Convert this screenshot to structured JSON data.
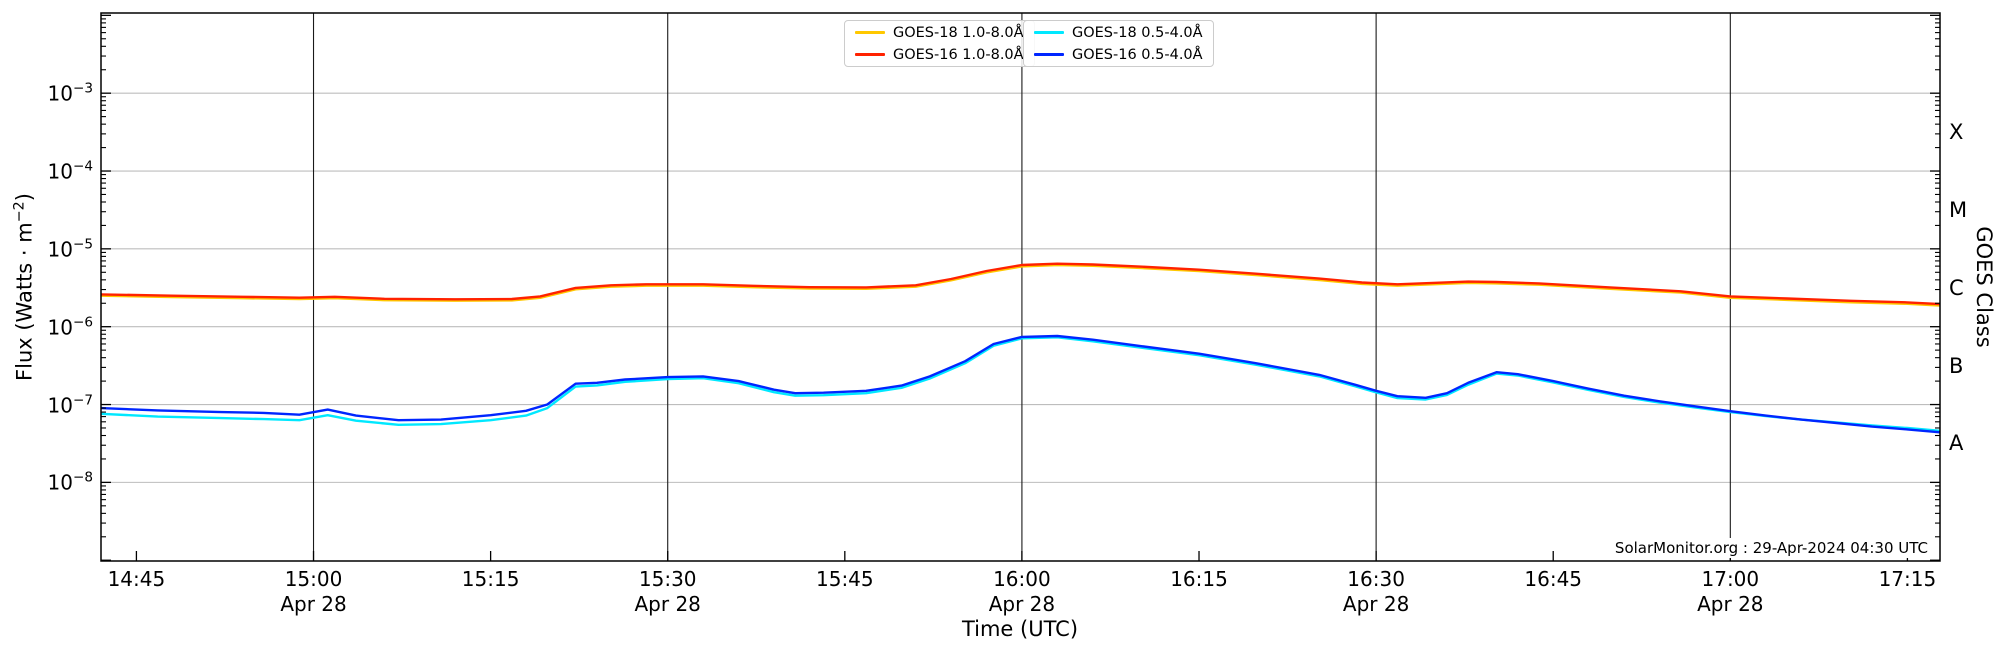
{
  "figure": {
    "bg": "#ffffff"
  },
  "axes": {
    "xlabel": "Time (UTC)",
    "ylabel_prefix": "Flux (Watts · m",
    "ylabel_exp": "−2",
    "ylabel_suffix": ")",
    "right_label": "GOES Class"
  },
  "watermark": "SolarMonitor.org : 29-Apr-2024 04:30 UTC",
  "colors": {
    "goes18_long": "#ffc800",
    "goes16_long": "#ff2200",
    "goes18_short": "#00e8ff",
    "goes16_short": "#0026ff",
    "h_grid": "#bdbdbd",
    "v_grid": "#1a1a1a",
    "frame": "#000000"
  },
  "legend": {
    "boxes": [
      {
        "entries": [
          {
            "label": "GOES-18 1.0-8.0Å",
            "color": "#ffc800"
          },
          {
            "label": "GOES-16 1.0-8.0Å",
            "color": "#ff2200"
          }
        ]
      },
      {
        "entries": [
          {
            "label": "GOES-18 0.5-4.0Å",
            "color": "#00e8ff"
          },
          {
            "label": "GOES-16 0.5-4.0Å",
            "color": "#0026ff"
          }
        ]
      }
    ]
  },
  "chart_data": {
    "type": "line",
    "xlabel": "Time (UTC)",
    "ylabel": "Flux (Watts · m−2)",
    "right_axis_label": "GOES Class",
    "x_axis": {
      "units": "decimal hours UTC",
      "date": "Apr 28",
      "start": 14.7,
      "end": 17.296,
      "ticks": [
        {
          "t": 14.75,
          "label": "14:45"
        },
        {
          "t": 15.0,
          "label": "15:00",
          "date": "Apr 28"
        },
        {
          "t": 15.25,
          "label": "15:15"
        },
        {
          "t": 15.5,
          "label": "15:30",
          "date": "Apr 28"
        },
        {
          "t": 15.75,
          "label": "15:45"
        },
        {
          "t": 16.0,
          "label": "16:00",
          "date": "Apr 28"
        },
        {
          "t": 16.25,
          "label": "16:15"
        },
        {
          "t": 16.5,
          "label": "16:30",
          "date": "Apr 28"
        },
        {
          "t": 16.75,
          "label": "16:45"
        },
        {
          "t": 17.0,
          "label": "17:00",
          "date": "Apr 28"
        },
        {
          "t": 17.25,
          "label": "17:15"
        }
      ]
    },
    "y_axis": {
      "scale": "log",
      "ylim_log10": [
        -9.01,
        -1.97
      ],
      "decade_ticks": [
        {
          "log": -3,
          "base": "10",
          "exp": "−3"
        },
        {
          "log": -4,
          "base": "10",
          "exp": "−4"
        },
        {
          "log": -5,
          "base": "10",
          "exp": "−5"
        },
        {
          "log": -6,
          "base": "10",
          "exp": "−6"
        },
        {
          "log": -7,
          "base": "10",
          "exp": "−7"
        },
        {
          "log": -8,
          "base": "10",
          "exp": "−8"
        }
      ]
    },
    "right_axis": {
      "classes": [
        {
          "label": "X",
          "log_center": -3.5
        },
        {
          "label": "M",
          "log_center": -4.5
        },
        {
          "label": "C",
          "log_center": -5.5
        },
        {
          "label": "B",
          "log_center": -6.5
        },
        {
          "label": "A",
          "log_center": -7.5
        }
      ]
    },
    "gridlines": {
      "vertical_hours": [
        15.0,
        15.5,
        16.0,
        16.5,
        17.0
      ],
      "horizontal_log10": [
        -3,
        -4,
        -5,
        -6,
        -7,
        -8
      ]
    },
    "series": [
      {
        "name": "GOES-18 1.0-8.0Å",
        "color": "#ffc800",
        "points": [
          [
            14.7,
            2.5e-06
          ],
          [
            14.8,
            2.4e-06
          ],
          [
            14.9,
            2.32e-06
          ],
          [
            14.98,
            2.27e-06
          ],
          [
            15.03,
            2.32e-06
          ],
          [
            15.1,
            2.19e-06
          ],
          [
            15.2,
            2.16e-06
          ],
          [
            15.28,
            2.18e-06
          ],
          [
            15.32,
            2.35e-06
          ],
          [
            15.37,
            3.02e-06
          ],
          [
            15.42,
            3.26e-06
          ],
          [
            15.47,
            3.36e-06
          ],
          [
            15.55,
            3.36e-06
          ],
          [
            15.62,
            3.22e-06
          ],
          [
            15.7,
            3.09e-06
          ],
          [
            15.78,
            3.07e-06
          ],
          [
            15.85,
            3.26e-06
          ],
          [
            15.9,
            3.94e-06
          ],
          [
            15.95,
            4.99e-06
          ],
          [
            16.0,
            5.95e-06
          ],
          [
            16.05,
            6.19e-06
          ],
          [
            16.1,
            6.05e-06
          ],
          [
            16.17,
            5.66e-06
          ],
          [
            16.25,
            5.18e-06
          ],
          [
            16.33,
            4.61e-06
          ],
          [
            16.42,
            3.98e-06
          ],
          [
            16.48,
            3.55e-06
          ],
          [
            16.53,
            3.36e-06
          ],
          [
            16.58,
            3.5e-06
          ],
          [
            16.63,
            3.65e-06
          ],
          [
            16.67,
            3.6e-06
          ],
          [
            16.73,
            3.46e-06
          ],
          [
            16.83,
            3.07e-06
          ],
          [
            16.93,
            2.74e-06
          ],
          [
            17.0,
            2.35e-06
          ],
          [
            17.08,
            2.21e-06
          ],
          [
            17.17,
            2.06e-06
          ],
          [
            17.25,
            1.97e-06
          ],
          [
            17.296,
            1.87e-06
          ]
        ]
      },
      {
        "name": "GOES-16 1.0-8.0Å",
        "color": "#ff2200",
        "points": [
          [
            14.7,
            2.6e-06
          ],
          [
            14.8,
            2.5e-06
          ],
          [
            14.9,
            2.42e-06
          ],
          [
            14.98,
            2.36e-06
          ],
          [
            15.03,
            2.42e-06
          ],
          [
            15.1,
            2.28e-06
          ],
          [
            15.2,
            2.25e-06
          ],
          [
            15.28,
            2.27e-06
          ],
          [
            15.32,
            2.45e-06
          ],
          [
            15.37,
            3.15e-06
          ],
          [
            15.42,
            3.4e-06
          ],
          [
            15.47,
            3.5e-06
          ],
          [
            15.55,
            3.5e-06
          ],
          [
            15.62,
            3.35e-06
          ],
          [
            15.7,
            3.22e-06
          ],
          [
            15.78,
            3.2e-06
          ],
          [
            15.85,
            3.4e-06
          ],
          [
            15.9,
            4.1e-06
          ],
          [
            15.95,
            5.2e-06
          ],
          [
            16.0,
            6.2e-06
          ],
          [
            16.05,
            6.45e-06
          ],
          [
            16.1,
            6.3e-06
          ],
          [
            16.17,
            5.9e-06
          ],
          [
            16.25,
            5.4e-06
          ],
          [
            16.33,
            4.8e-06
          ],
          [
            16.42,
            4.15e-06
          ],
          [
            16.48,
            3.7e-06
          ],
          [
            16.53,
            3.5e-06
          ],
          [
            16.58,
            3.65e-06
          ],
          [
            16.63,
            3.8e-06
          ],
          [
            16.67,
            3.75e-06
          ],
          [
            16.73,
            3.6e-06
          ],
          [
            16.83,
            3.2e-06
          ],
          [
            16.93,
            2.85e-06
          ],
          [
            17.0,
            2.45e-06
          ],
          [
            17.08,
            2.3e-06
          ],
          [
            17.17,
            2.15e-06
          ],
          [
            17.25,
            2.05e-06
          ],
          [
            17.296,
            1.95e-06
          ]
        ]
      },
      {
        "name": "GOES-18 0.5-4.0Å",
        "color": "#00e8ff",
        "points": [
          [
            14.7,
            7.6e-08
          ],
          [
            14.78,
            7e-08
          ],
          [
            14.87,
            6.7e-08
          ],
          [
            14.93,
            6.5e-08
          ],
          [
            14.98,
            6.3e-08
          ],
          [
            15.02,
            7.3e-08
          ],
          [
            15.06,
            6.2e-08
          ],
          [
            15.12,
            5.5e-08
          ],
          [
            15.18,
            5.6e-08
          ],
          [
            15.25,
            6.3e-08
          ],
          [
            15.3,
            7.2e-08
          ],
          [
            15.33,
            9e-08
          ],
          [
            15.37,
            1.7e-07
          ],
          [
            15.4,
            1.76e-07
          ],
          [
            15.44,
            1.96e-07
          ],
          [
            15.5,
            2.12e-07
          ],
          [
            15.55,
            2.18e-07
          ],
          [
            15.6,
            1.88e-07
          ],
          [
            15.65,
            1.44e-07
          ],
          [
            15.68,
            1.3e-07
          ],
          [
            15.72,
            1.32e-07
          ],
          [
            15.78,
            1.4e-07
          ],
          [
            15.83,
            1.64e-07
          ],
          [
            15.87,
            2.16e-07
          ],
          [
            15.92,
            3.4e-07
          ],
          [
            15.96,
            5.7e-07
          ],
          [
            16.0,
            7.1e-07
          ],
          [
            16.05,
            7.3e-07
          ],
          [
            16.1,
            6.5e-07
          ],
          [
            16.17,
            5.35e-07
          ],
          [
            16.25,
            4.3e-07
          ],
          [
            16.33,
            3.25e-07
          ],
          [
            16.42,
            2.3e-07
          ],
          [
            16.47,
            1.72e-07
          ],
          [
            16.5,
            1.43e-07
          ],
          [
            16.53,
            1.21e-07
          ],
          [
            16.57,
            1.16e-07
          ],
          [
            16.6,
            1.33e-07
          ],
          [
            16.63,
            1.8e-07
          ],
          [
            16.67,
            2.5e-07
          ],
          [
            16.7,
            2.36e-07
          ],
          [
            16.75,
            1.92e-07
          ],
          [
            16.8,
            1.54e-07
          ],
          [
            16.85,
            1.25e-07
          ],
          [
            16.9,
            1.06e-07
          ],
          [
            16.95,
            9.2e-08
          ],
          [
            17.0,
            8e-08
          ],
          [
            17.05,
            7.1e-08
          ],
          [
            17.1,
            6.4e-08
          ],
          [
            17.15,
            5.9e-08
          ],
          [
            17.2,
            5.4e-08
          ],
          [
            17.25,
            5e-08
          ],
          [
            17.296,
            4.6e-08
          ]
        ]
      },
      {
        "name": "GOES-16 0.5-4.0Å",
        "color": "#0026ff",
        "points": [
          [
            14.7,
            9e-08
          ],
          [
            14.78,
            8.4e-08
          ],
          [
            14.87,
            8e-08
          ],
          [
            14.93,
            7.8e-08
          ],
          [
            14.98,
            7.4e-08
          ],
          [
            15.02,
            8.6e-08
          ],
          [
            15.06,
            7.2e-08
          ],
          [
            15.12,
            6.3e-08
          ],
          [
            15.18,
            6.4e-08
          ],
          [
            15.25,
            7.3e-08
          ],
          [
            15.3,
            8.3e-08
          ],
          [
            15.33,
            1e-07
          ],
          [
            15.37,
            1.85e-07
          ],
          [
            15.4,
            1.9e-07
          ],
          [
            15.44,
            2.1e-07
          ],
          [
            15.5,
            2.25e-07
          ],
          [
            15.55,
            2.3e-07
          ],
          [
            15.6,
            2e-07
          ],
          [
            15.65,
            1.55e-07
          ],
          [
            15.68,
            1.4e-07
          ],
          [
            15.72,
            1.42e-07
          ],
          [
            15.78,
            1.5e-07
          ],
          [
            15.83,
            1.75e-07
          ],
          [
            15.87,
            2.3e-07
          ],
          [
            15.92,
            3.6e-07
          ],
          [
            15.96,
            6e-07
          ],
          [
            16.0,
            7.4e-07
          ],
          [
            16.05,
            7.6e-07
          ],
          [
            16.1,
            6.8e-07
          ],
          [
            16.17,
            5.6e-07
          ],
          [
            16.25,
            4.5e-07
          ],
          [
            16.33,
            3.4e-07
          ],
          [
            16.42,
            2.4e-07
          ],
          [
            16.47,
            1.8e-07
          ],
          [
            16.5,
            1.5e-07
          ],
          [
            16.53,
            1.28e-07
          ],
          [
            16.57,
            1.22e-07
          ],
          [
            16.6,
            1.4e-07
          ],
          [
            16.63,
            1.9e-07
          ],
          [
            16.67,
            2.6e-07
          ],
          [
            16.7,
            2.45e-07
          ],
          [
            16.75,
            2e-07
          ],
          [
            16.8,
            1.6e-07
          ],
          [
            16.85,
            1.3e-07
          ],
          [
            16.9,
            1.1e-07
          ],
          [
            16.95,
            9.5e-08
          ],
          [
            17.0,
            8.2e-08
          ],
          [
            17.05,
            7.2e-08
          ],
          [
            17.1,
            6.4e-08
          ],
          [
            17.15,
            5.8e-08
          ],
          [
            17.2,
            5.2e-08
          ],
          [
            17.25,
            4.8e-08
          ],
          [
            17.296,
            4.4e-08
          ]
        ]
      }
    ]
  }
}
